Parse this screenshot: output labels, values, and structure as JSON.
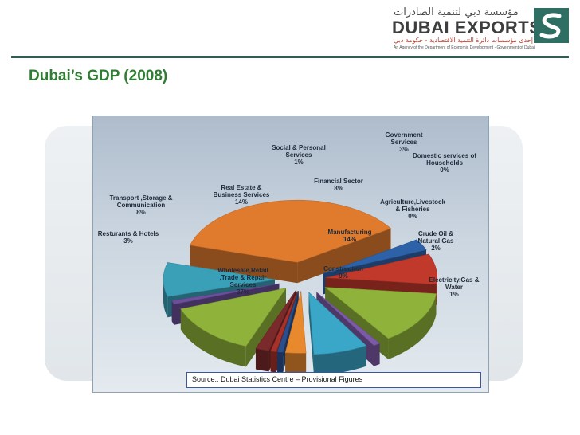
{
  "header": {
    "logo_arabic": "مؤسسة دبي لتنمية الصادرات",
    "logo_english": "DUBAI EXPORTS",
    "logo_sub_arabic": "إحدى مؤسسات دائرة التنمية الاقتصادية - حكومة دبي",
    "logo_sub_english": "An Agency of the Department of Economic Development - Government of Dubai",
    "divider_color": "#2f5d53"
  },
  "title": "Dubai’s GDP (2008)",
  "source": "Source:: Dubai Statistics Centre – Provisional Figures",
  "chart_data": {
    "type": "pie",
    "title": "",
    "style": "3d-exploded",
    "slices": [
      {
        "label": [
          "Wholesale,Retail",
          ",Trade & Repair",
          "Services"
        ],
        "value": 37,
        "percent_text": "37%",
        "color": "#e07b2e"
      },
      {
        "label": [
          "Resturants & Hotels"
        ],
        "value": 3,
        "percent_text": "3%",
        "color": "#2e62a8"
      },
      {
        "label": [
          "Transport ,Storage &",
          "Communication"
        ],
        "value": 8,
        "percent_text": "8%",
        "color": "#c0392b"
      },
      {
        "label": [
          "Real Estate &",
          "Business Services"
        ],
        "value": 14,
        "percent_text": "14%",
        "color": "#8fb33a"
      },
      {
        "label": [
          "Social & Personal",
          "Services"
        ],
        "value": 1,
        "percent_text": "1%",
        "color": "#7c5aa8"
      },
      {
        "label": [
          "Financial Sector"
        ],
        "value": 8,
        "percent_text": "8%",
        "color": "#3aa6c8"
      },
      {
        "label": [
          "Government",
          "Services"
        ],
        "value": 3,
        "percent_text": "3%",
        "color": "#e8892e"
      },
      {
        "label": [
          "Domestic services of",
          "Households"
        ],
        "value": 0,
        "percent_text": "0%",
        "color": "#2b4f8c"
      },
      {
        "label": [
          "Agriculture,Livestock",
          "& Fisheries"
        ],
        "value": 0,
        "percent_text": "0%",
        "color": "#a8322a"
      },
      {
        "label": [
          "Crude Oil &",
          "Natural Gas"
        ],
        "value": 2,
        "percent_text": "2%",
        "color": "#7a2a2a"
      },
      {
        "label": [
          "Manufacturing"
        ],
        "value": 14,
        "percent_text": "14%",
        "color": "#8fb33a"
      },
      {
        "label": [
          "Electricity,Gas &",
          "Water"
        ],
        "value": 1,
        "percent_text": "1%",
        "color": "#6b4f9a"
      },
      {
        "label": [
          "Construction"
        ],
        "value": 9,
        "percent_text": "9%",
        "color": "#3aa0b8"
      }
    ]
  }
}
